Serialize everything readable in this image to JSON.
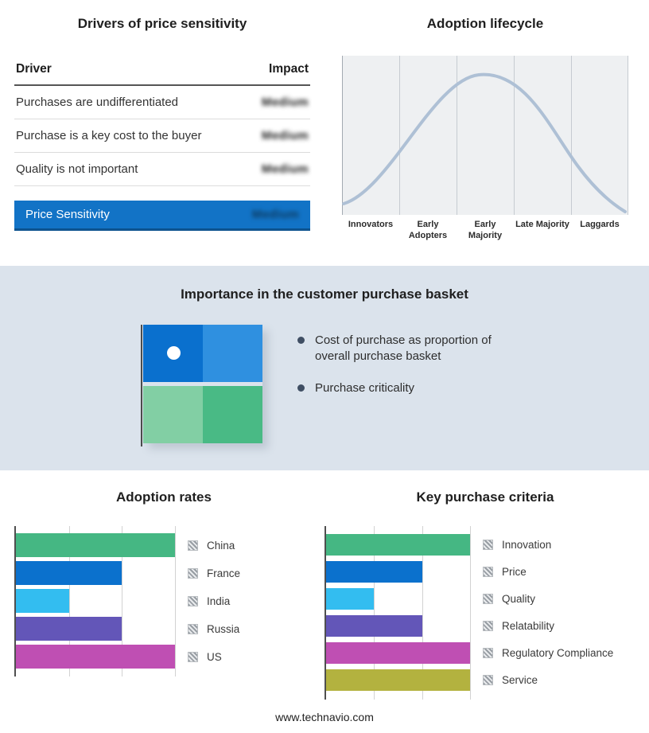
{
  "footer": {
    "text": "www.technavio.com"
  },
  "drivers": {
    "title": "Drivers of price sensitivity",
    "columns": {
      "driver": "Driver",
      "impact": "Impact"
    },
    "rows": [
      {
        "driver": "Purchases are undifferentiated",
        "impact": "Medium"
      },
      {
        "driver": "Purchase is a key cost to the buyer",
        "impact": "Medium"
      },
      {
        "driver": "Quality is not important",
        "impact": "Medium"
      }
    ],
    "highlight": {
      "label": "Price Sensitivity",
      "impact": "Medium",
      "color": "#1273c6"
    }
  },
  "lifecycle": {
    "title": "Adoption lifecycle",
    "stages": [
      "Innovators",
      "Early Adopters",
      "Early Majority",
      "Late Majority",
      "Laggards"
    ],
    "curve_color": "#aec0d5",
    "plot_bg": "#eef0f2"
  },
  "basket": {
    "title": "Importance in the customer purchase basket",
    "bullets": [
      "Cost of purchase as proportion of overall purchase basket",
      "Purchase criticality"
    ],
    "quadrant_colors": {
      "tl": "#0a70ce",
      "tr": "#2f90e0",
      "bl": "#82cfa4",
      "br": "#49ba85"
    },
    "band_bg": "#dbe3ec"
  },
  "chart_data": [
    {
      "type": "bar",
      "title": "Adoption rates",
      "orientation": "horizontal",
      "categories": [
        "China",
        "France",
        "India",
        "Russia",
        "US"
      ],
      "values": [
        3,
        2,
        1,
        2,
        3
      ],
      "xlim": [
        0,
        3
      ],
      "colors": [
        "#45b783",
        "#0b71cd",
        "#33bdf0",
        "#6356b8",
        "#bf4fb3"
      ],
      "legend_position": "right",
      "grid": true
    },
    {
      "type": "bar",
      "title": "Key purchase criteria",
      "orientation": "horizontal",
      "categories": [
        "Innovation",
        "Price",
        "Quality",
        "Relatability",
        "Regulatory Compliance",
        "Service"
      ],
      "values": [
        3,
        2,
        1,
        2,
        3,
        3
      ],
      "xlim": [
        0,
        3
      ],
      "colors": [
        "#45b783",
        "#0b71cd",
        "#33bdf0",
        "#6356b8",
        "#bf4fb3",
        "#b3b23f"
      ],
      "legend_position": "right",
      "grid": true
    }
  ]
}
